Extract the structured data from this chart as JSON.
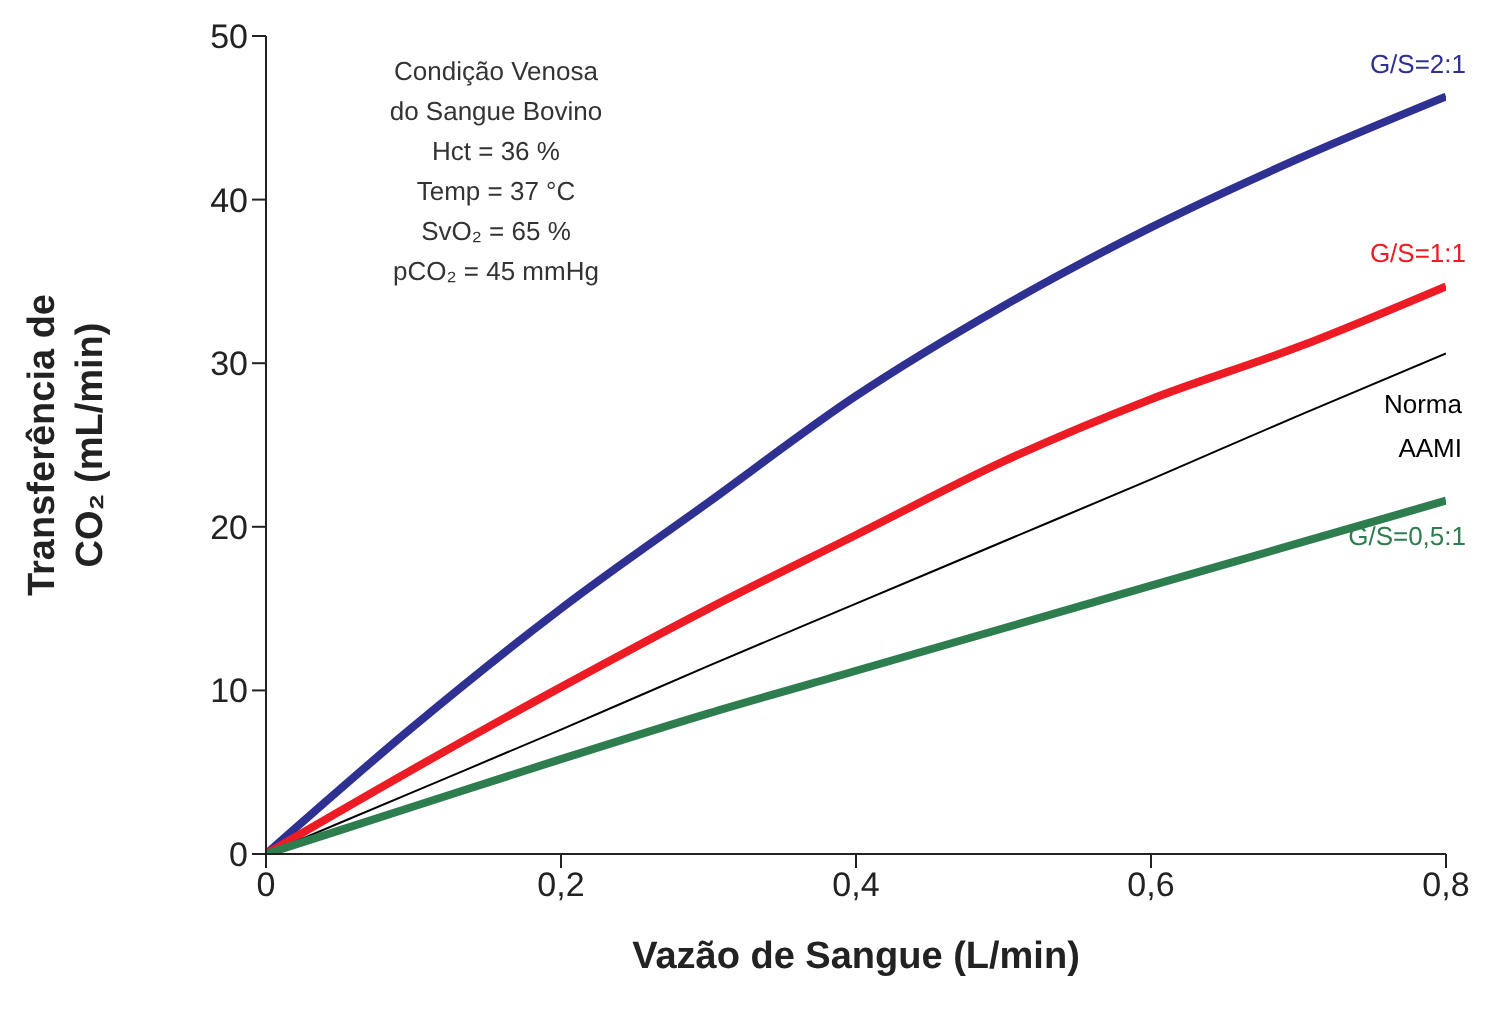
{
  "chart_data": {
    "type": "line",
    "xlabel": "Vazão de Sangue (L/min)",
    "ylabel": "Transferência de CO₂ (mL/min)",
    "xlim": [
      0,
      0.8
    ],
    "xticks": [
      {
        "value": 0,
        "label": "0"
      },
      {
        "value": 0.2,
        "label": "0,2"
      },
      {
        "value": 0.4,
        "label": "0,4"
      },
      {
        "value": 0.6,
        "label": "0,6"
      },
      {
        "value": 0.8,
        "label": "0,8"
      }
    ],
    "ylim": [
      0,
      50
    ],
    "yticks": [
      0,
      10,
      20,
      30,
      40,
      50
    ],
    "marker": "none",
    "line_style": "solid",
    "x": [
      0,
      0.1,
      0.2,
      0.3,
      0.4,
      0.5,
      0.6,
      0.7,
      0.8
    ],
    "series": [
      {
        "name": "G/S=2:1",
        "color": "#2e3192",
        "values": [
          0,
          7.8,
          15,
          21.5,
          28,
          33.5,
          38.3,
          42.5,
          46.3
        ]
      },
      {
        "name": "G/S=1:1",
        "color": "#ed1c24",
        "values": [
          0,
          5.2,
          10.2,
          15,
          19.5,
          24,
          27.8,
          31,
          34.7
        ]
      },
      {
        "name": "Norma AAMI",
        "color": "#000000",
        "values": [
          0,
          3.8,
          7.6,
          11.5,
          15.3,
          19.1,
          22.9,
          26.8,
          30.6
        ]
      },
      {
        "name": "G/S=0,5:1",
        "color": "#2e7d4f",
        "values": [
          0,
          2.9,
          5.8,
          8.6,
          11.2,
          13.8,
          16.4,
          19,
          21.6
        ]
      }
    ],
    "annotations": [
      "Condição Venosa\ndo Sangue Bovino\nHct = 36 %\nTemp = 37 °C\nSvO₂ = 65 %\npCO₂ = 45 mmHg"
    ]
  }
}
